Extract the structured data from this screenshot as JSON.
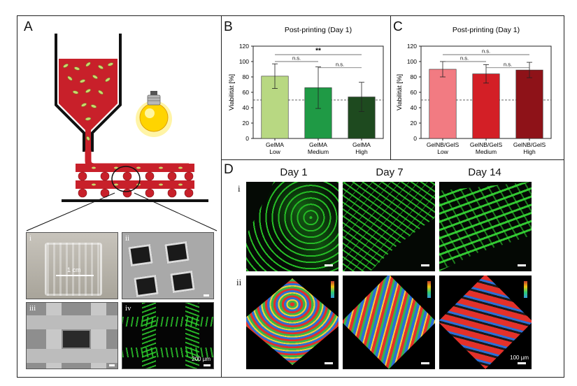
{
  "panel_labels": {
    "a": "A",
    "b": "B",
    "c": "C",
    "d": "D"
  },
  "panel_a": {
    "sub_labels": [
      "i",
      "ii",
      "iii",
      "iv"
    ],
    "scale_text_i": "1 cm",
    "scale_text_iv": "200 µm"
  },
  "panel_d": {
    "days": [
      "Day 1",
      "Day 7",
      "Day 14"
    ],
    "rows": [
      "i",
      "ii"
    ],
    "scale_text": "100 µm"
  },
  "colors": {
    "gelma": [
      "#b8d882",
      "#1f9a45",
      "#1e4a1f"
    ],
    "gelnb": [
      "#f27b82",
      "#d31f26",
      "#8e1218"
    ]
  },
  "chart_data": [
    {
      "type": "bar",
      "title": "Post-printing (Day 1)",
      "ylabel": "Viabilität [%]",
      "ylim": [
        0,
        120
      ],
      "yticks": [
        0,
        20,
        40,
        60,
        80,
        100,
        120
      ],
      "categories": [
        [
          "GelMA",
          "Low"
        ],
        [
          "GelMA",
          "Medium"
        ],
        [
          "GelMA",
          "High"
        ]
      ],
      "values": [
        81,
        66,
        54
      ],
      "errors": [
        16,
        27,
        19
      ],
      "reference_line": 50,
      "significance": [
        {
          "from": 0,
          "to": 1,
          "label": "n.s."
        },
        {
          "from": 1,
          "to": 2,
          "label": "n.s."
        },
        {
          "from": 0,
          "to": 2,
          "label": "**"
        }
      ]
    },
    {
      "type": "bar",
      "title": "Post-printing (Day 1)",
      "ylabel": "Viabilität [%]",
      "ylim": [
        0,
        120
      ],
      "yticks": [
        0,
        20,
        40,
        60,
        80,
        100,
        120
      ],
      "categories": [
        [
          "GelNB/GelS",
          "Low"
        ],
        [
          "GelNB/GelS",
          "Medium"
        ],
        [
          "GelNB/GelS",
          "High"
        ]
      ],
      "values": [
        90,
        84,
        89
      ],
      "errors": [
        10,
        12,
        10
      ],
      "reference_line": 50,
      "significance": [
        {
          "from": 0,
          "to": 1,
          "label": "n.s."
        },
        {
          "from": 1,
          "to": 2,
          "label": "n.s."
        },
        {
          "from": 0,
          "to": 2,
          "label": "n.s."
        }
      ]
    }
  ]
}
